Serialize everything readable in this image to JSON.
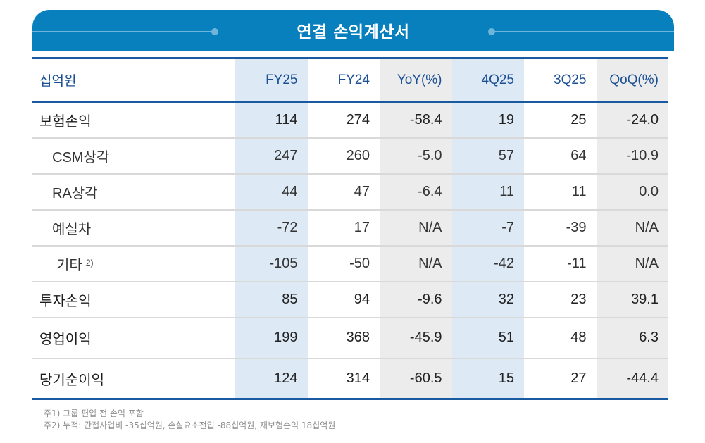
{
  "banner": {
    "title": "연결 손익계산서"
  },
  "colors": {
    "banner_bg": "#0780bd",
    "header_text": "#1a4f94",
    "rule": "#1a5aa0",
    "highlight_blue": "#dde9f5",
    "highlight_gray": "#ececec"
  },
  "table": {
    "unit_label": "십억원",
    "columns": [
      "FY25",
      "FY24",
      "YoY(%)",
      "4Q25",
      "3Q25",
      "QoQ(%)"
    ],
    "rows": [
      {
        "label": "보험손익",
        "note": "",
        "values": [
          "114",
          "274",
          "-58.4",
          "19",
          "25",
          "-24.0"
        ]
      },
      {
        "label": "CSM상각",
        "note": "",
        "values": [
          "247",
          "260",
          "-5.0",
          "57",
          "64",
          "-10.9"
        ]
      },
      {
        "label": "RA상각",
        "note": "",
        "values": [
          "44",
          "47",
          "-6.4",
          "11",
          "11",
          "0.0"
        ]
      },
      {
        "label": "예실차",
        "note": "",
        "values": [
          "-72",
          "17",
          "N/A",
          "-7",
          "-39",
          "N/A"
        ]
      },
      {
        "label": "기타",
        "note": "2)",
        "values": [
          "-105",
          "-50",
          "N/A",
          "-42",
          "-11",
          "N/A"
        ]
      },
      {
        "label": "투자손익",
        "note": "",
        "values": [
          "85",
          "94",
          "-9.6",
          "32",
          "23",
          "39.1"
        ]
      },
      {
        "label": "영업이익",
        "note": "",
        "values": [
          "199",
          "368",
          "-45.9",
          "51",
          "48",
          "6.3"
        ]
      },
      {
        "label": "당기순이익",
        "note": "",
        "values": [
          "124",
          "314",
          "-60.5",
          "15",
          "27",
          "-44.4"
        ]
      }
    ]
  },
  "footnotes": [
    "주1) 그룹 편입 전 손익 포함",
    "주2) 누적: 간접사업비 -35십억원, 손실요소전입 -88십억원, 재보험손익 18십억원"
  ]
}
